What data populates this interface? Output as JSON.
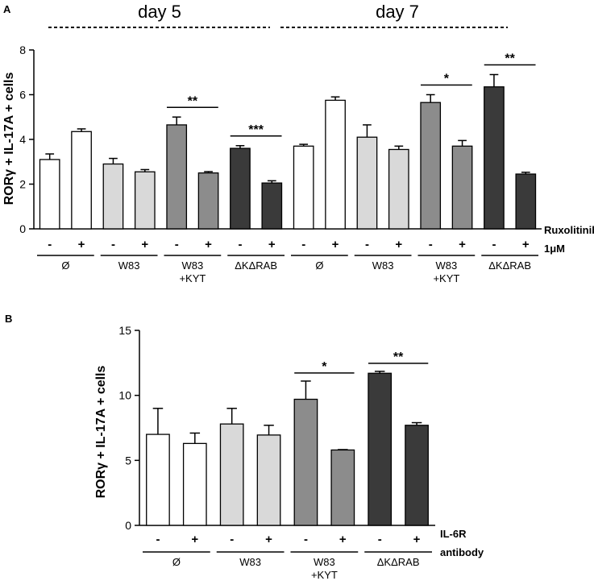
{
  "figure": {
    "panel_a_label": "A",
    "panel_b_label": "B"
  },
  "chart_data": [
    {
      "type": "bar",
      "panel": "A",
      "ylabel": "RORγ + IL-17A + cells",
      "ylim": [
        0,
        8
      ],
      "yticks": [
        0,
        2,
        4,
        6,
        8
      ],
      "day_labels": [
        "day 5",
        "day 7"
      ],
      "condition_label_line1": "Ruxolitinib",
      "condition_label_line2": "1μM",
      "categories": [
        "-",
        "+",
        "-",
        "+",
        "-",
        "+",
        "-",
        "+",
        "-",
        "+",
        "-",
        "+",
        "-",
        "+",
        "-",
        "+"
      ],
      "groups": [
        {
          "label": "Ø",
          "label2": "",
          "color": "#ffffff"
        },
        {
          "label": "W83",
          "label2": "",
          "color": "#d9d9d9"
        },
        {
          "label": "W83",
          "label2": "+KYT",
          "color": "#8c8c8c"
        },
        {
          "label": "ΔKΔRAB",
          "label2": "",
          "color": "#3a3a3a"
        },
        {
          "label": "Ø",
          "label2": "",
          "color": "#ffffff"
        },
        {
          "label": "W83",
          "label2": "",
          "color": "#d9d9d9"
        },
        {
          "label": "W83",
          "label2": "+KYT",
          "color": "#8c8c8c"
        },
        {
          "label": "ΔKΔRAB",
          "label2": "",
          "color": "#3a3a3a"
        }
      ],
      "values": [
        3.1,
        4.35,
        2.9,
        2.55,
        4.65,
        2.5,
        3.6,
        2.05,
        3.7,
        5.75,
        4.1,
        3.55,
        5.65,
        3.7,
        6.35,
        2.45
      ],
      "errors": [
        0.25,
        0.12,
        0.25,
        0.1,
        0.35,
        0.06,
        0.12,
        0.1,
        0.08,
        0.15,
        0.55,
        0.15,
        0.35,
        0.25,
        0.55,
        0.08
      ],
      "significance": [
        {
          "pair": [
            4,
            5
          ],
          "label": "**"
        },
        {
          "pair": [
            6,
            7
          ],
          "label": "***"
        },
        {
          "pair": [
            12,
            13
          ],
          "label": "*"
        },
        {
          "pair": [
            14,
            15
          ],
          "label": "**"
        }
      ]
    },
    {
      "type": "bar",
      "panel": "B",
      "ylabel": "RORγ + IL-17A + cells",
      "ylim": [
        0,
        15
      ],
      "yticks": [
        0,
        5,
        10,
        15
      ],
      "condition_label_line1": "IL-6R",
      "condition_label_line2": "antibody",
      "categories": [
        "-",
        "+",
        "-",
        "+",
        "-",
        "+",
        "-",
        "+"
      ],
      "groups": [
        {
          "label": "Ø",
          "label2": "",
          "color": "#ffffff"
        },
        {
          "label": "W83",
          "label2": "",
          "color": "#d9d9d9"
        },
        {
          "label": "W83",
          "label2": "+KYT",
          "color": "#8c8c8c"
        },
        {
          "label": "ΔKΔRAB",
          "label2": "",
          "color": "#3a3a3a"
        }
      ],
      "values": [
        7.0,
        6.3,
        7.8,
        6.95,
        9.7,
        5.8,
        11.7,
        7.7
      ],
      "errors": [
        2.0,
        0.8,
        1.2,
        0.75,
        1.4,
        0.03,
        0.15,
        0.2
      ],
      "significance": [
        {
          "pair": [
            4,
            5
          ],
          "label": "*"
        },
        {
          "pair": [
            6,
            7
          ],
          "label": "**"
        }
      ]
    }
  ]
}
